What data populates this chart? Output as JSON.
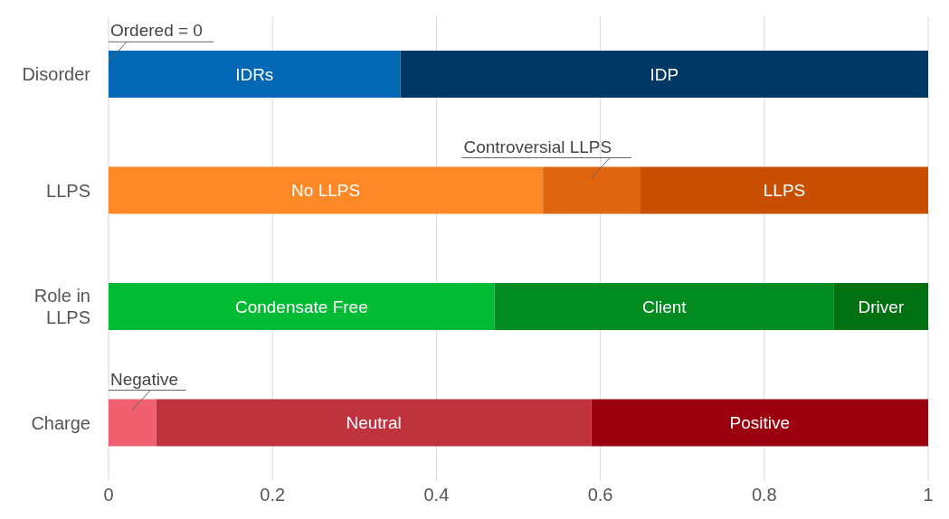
{
  "chart_data": {
    "type": "bar",
    "orientation": "horizontal",
    "stacked": true,
    "categories": [
      "Disorder",
      "LLPS",
      "Role in LLPS",
      "Charge"
    ],
    "series": [
      {
        "name": "IDRs",
        "color": "#0068b4",
        "values": [
          0.356,
          null,
          null,
          null
        ]
      },
      {
        "name": "IDP",
        "color": "#003865",
        "values": [
          0.644,
          null,
          null,
          null
        ]
      },
      {
        "name": "No LLPS",
        "color": "#ff8827",
        "values": [
          null,
          0.53,
          null,
          null
        ]
      },
      {
        "name": "Controversial LLPS",
        "color": "#e0650f",
        "values": [
          null,
          0.119,
          null,
          null
        ]
      },
      {
        "name": "LLPS",
        "color": "#c94f00",
        "values": [
          null,
          0.351,
          null,
          null
        ]
      },
      {
        "name": "Condensate Free",
        "color": "#00bb33",
        "values": [
          null,
          null,
          0.471,
          null
        ]
      },
      {
        "name": "Client",
        "color": "#008c20",
        "values": [
          null,
          null,
          0.414,
          null
        ]
      },
      {
        "name": "Driver",
        "color": "#007010",
        "values": [
          null,
          null,
          0.115,
          null
        ]
      },
      {
        "name": "Negative",
        "color": "#f06070",
        "values": [
          null,
          null,
          null,
          0.058
        ]
      },
      {
        "name": "Neutral",
        "color": "#c0333e",
        "values": [
          null,
          null,
          null,
          0.531
        ]
      },
      {
        "name": "Positive",
        "color": "#9b000f",
        "values": [
          null,
          null,
          null,
          0.411
        ]
      }
    ],
    "annotations": [
      {
        "text": "Ordered = 0",
        "x": 0,
        "y": "Disorder"
      }
    ],
    "xlim": [
      0,
      1
    ],
    "xticks": [
      0,
      0.2,
      0.4,
      0.6,
      0.8,
      1
    ],
    "grid": "x"
  }
}
